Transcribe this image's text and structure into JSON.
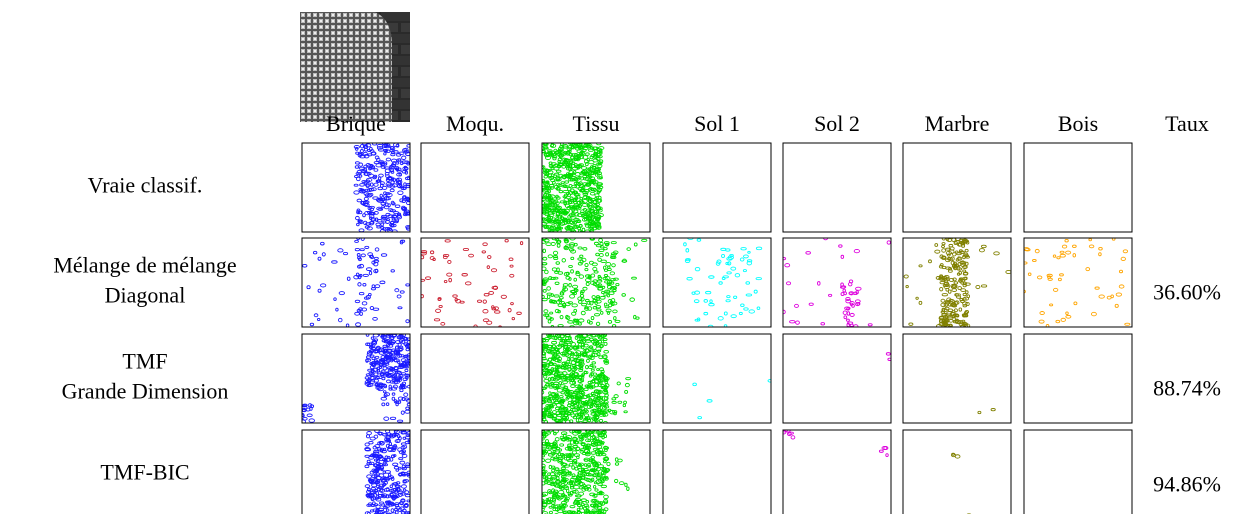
{
  "table": {
    "headers": [
      "Brique",
      "Moqu.",
      "Tissu",
      "Sol 1",
      "Sol 2",
      "Marbre",
      "Bois",
      "Taux"
    ],
    "colors": [
      "#1a1aff",
      "#cc2233",
      "#00dd00",
      "#00ffff",
      "#dd00dd",
      "#808000",
      "#ffa500"
    ],
    "rows": [
      {
        "label": [
          "Vraie classif."
        ]
      },
      {
        "label": [
          "Mélange de mélange",
          "Diagonal"
        ],
        "rate": "36.60%"
      },
      {
        "label": [
          "TMF",
          "Grande Dimension"
        ],
        "rate": "88.74%"
      },
      {
        "label": [
          "TMF-BIC"
        ],
        "rate": "94.86%"
      }
    ]
  }
}
